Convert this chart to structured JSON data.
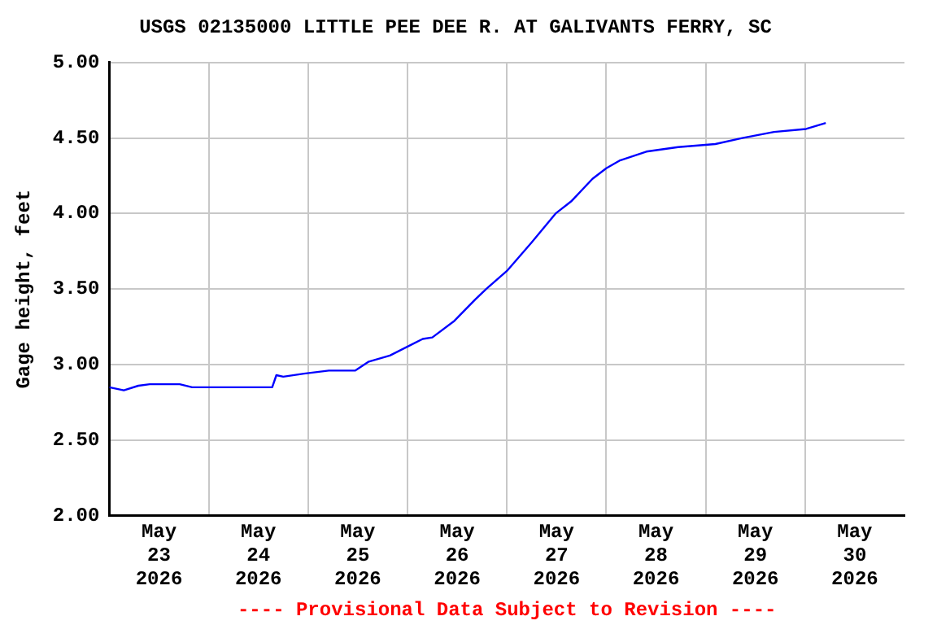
{
  "chart_data": {
    "type": "line",
    "title": "USGS 02135000 LITTLE PEE DEE R. AT GALIVANTS FERRY, SC",
    "ylabel": "Gage height, feet",
    "annotations": [
      "---- Provisional Data Subject to Revision ----"
    ],
    "series": [
      {
        "color": "#0000ff",
        "x": [
          "2026-05-23T00:00",
          "2026-05-23T03:30",
          "2026-05-23T07:00",
          "2026-05-23T09:45",
          "2026-05-23T17:00",
          "2026-05-23T20:00",
          "2026-05-24T15:20",
          "2026-05-24T16:20",
          "2026-05-24T18:00",
          "2026-05-24T23:00",
          "2026-05-25T05:00",
          "2026-05-25T11:20",
          "2026-05-25T14:40",
          "2026-05-25T19:45",
          "2026-05-26T03:40",
          "2026-05-26T06:00",
          "2026-05-26T11:20",
          "2026-05-26T16:20",
          "2026-05-26T19:00",
          "2026-05-27T00:00",
          "2026-05-27T06:00",
          "2026-05-27T11:45",
          "2026-05-27T15:30",
          "2026-05-27T20:40",
          "2026-05-28T00:00",
          "2026-05-28T03:10",
          "2026-05-28T09:40",
          "2026-05-28T17:20",
          "2026-05-29T02:20",
          "2026-05-29T08:50",
          "2026-05-29T16:30",
          "2026-05-30T00:15",
          "2026-05-30T05:00"
        ],
        "values": [
          2.85,
          2.83,
          2.86,
          2.87,
          2.87,
          2.85,
          2.85,
          2.93,
          2.92,
          2.94,
          2.96,
          2.96,
          3.02,
          3.06,
          3.17,
          3.18,
          3.29,
          3.43,
          3.5,
          3.62,
          3.81,
          4.0,
          4.08,
          4.23,
          4.3,
          4.35,
          4.41,
          4.44,
          4.46,
          4.5,
          4.54,
          4.56,
          4.6
        ]
      }
    ],
    "xlim": [
      "2026-05-23T00:00",
      "2026-05-31T00:00"
    ],
    "xticks": [
      {
        "value": "2026-05-23T12:00",
        "label": "May\n23\n2026"
      },
      {
        "value": "2026-05-24T00:00",
        "label": null
      },
      {
        "value": "2026-05-24T12:00",
        "label": "May\n24\n2026"
      },
      {
        "value": "2026-05-25T00:00",
        "label": null
      },
      {
        "value": "2026-05-25T12:00",
        "label": "May\n25\n2026"
      },
      {
        "value": "2026-05-26T00:00",
        "label": null
      },
      {
        "value": "2026-05-26T12:00",
        "label": "May\n26\n2026"
      },
      {
        "value": "2026-05-27T00:00",
        "label": null
      },
      {
        "value": "2026-05-27T12:00",
        "label": "May\n27\n2026"
      },
      {
        "value": "2026-05-28T00:00",
        "label": null
      },
      {
        "value": "2026-05-28T12:00",
        "label": "May\n28\n2026"
      },
      {
        "value": "2026-05-29T00:00",
        "label": null
      },
      {
        "value": "2026-05-29T12:00",
        "label": "May\n29\n2026"
      },
      {
        "value": "2026-05-30T00:00",
        "label": null
      },
      {
        "value": "2026-05-30T12:00",
        "label": "May\n30\n2026"
      }
    ],
    "ylim": [
      2.0,
      5.0
    ],
    "yticks": [
      {
        "value": 2.0,
        "label": "2.00"
      },
      {
        "value": 2.5,
        "label": "2.50"
      },
      {
        "value": 3.0,
        "label": "3.00"
      },
      {
        "value": 3.5,
        "label": "3.50"
      },
      {
        "value": 4.0,
        "label": "4.00"
      },
      {
        "value": 4.5,
        "label": "4.50"
      },
      {
        "value": 5.0,
        "label": "5.00"
      }
    ],
    "grid": true,
    "legend": false,
    "marker": "none",
    "line_style": "solid"
  }
}
